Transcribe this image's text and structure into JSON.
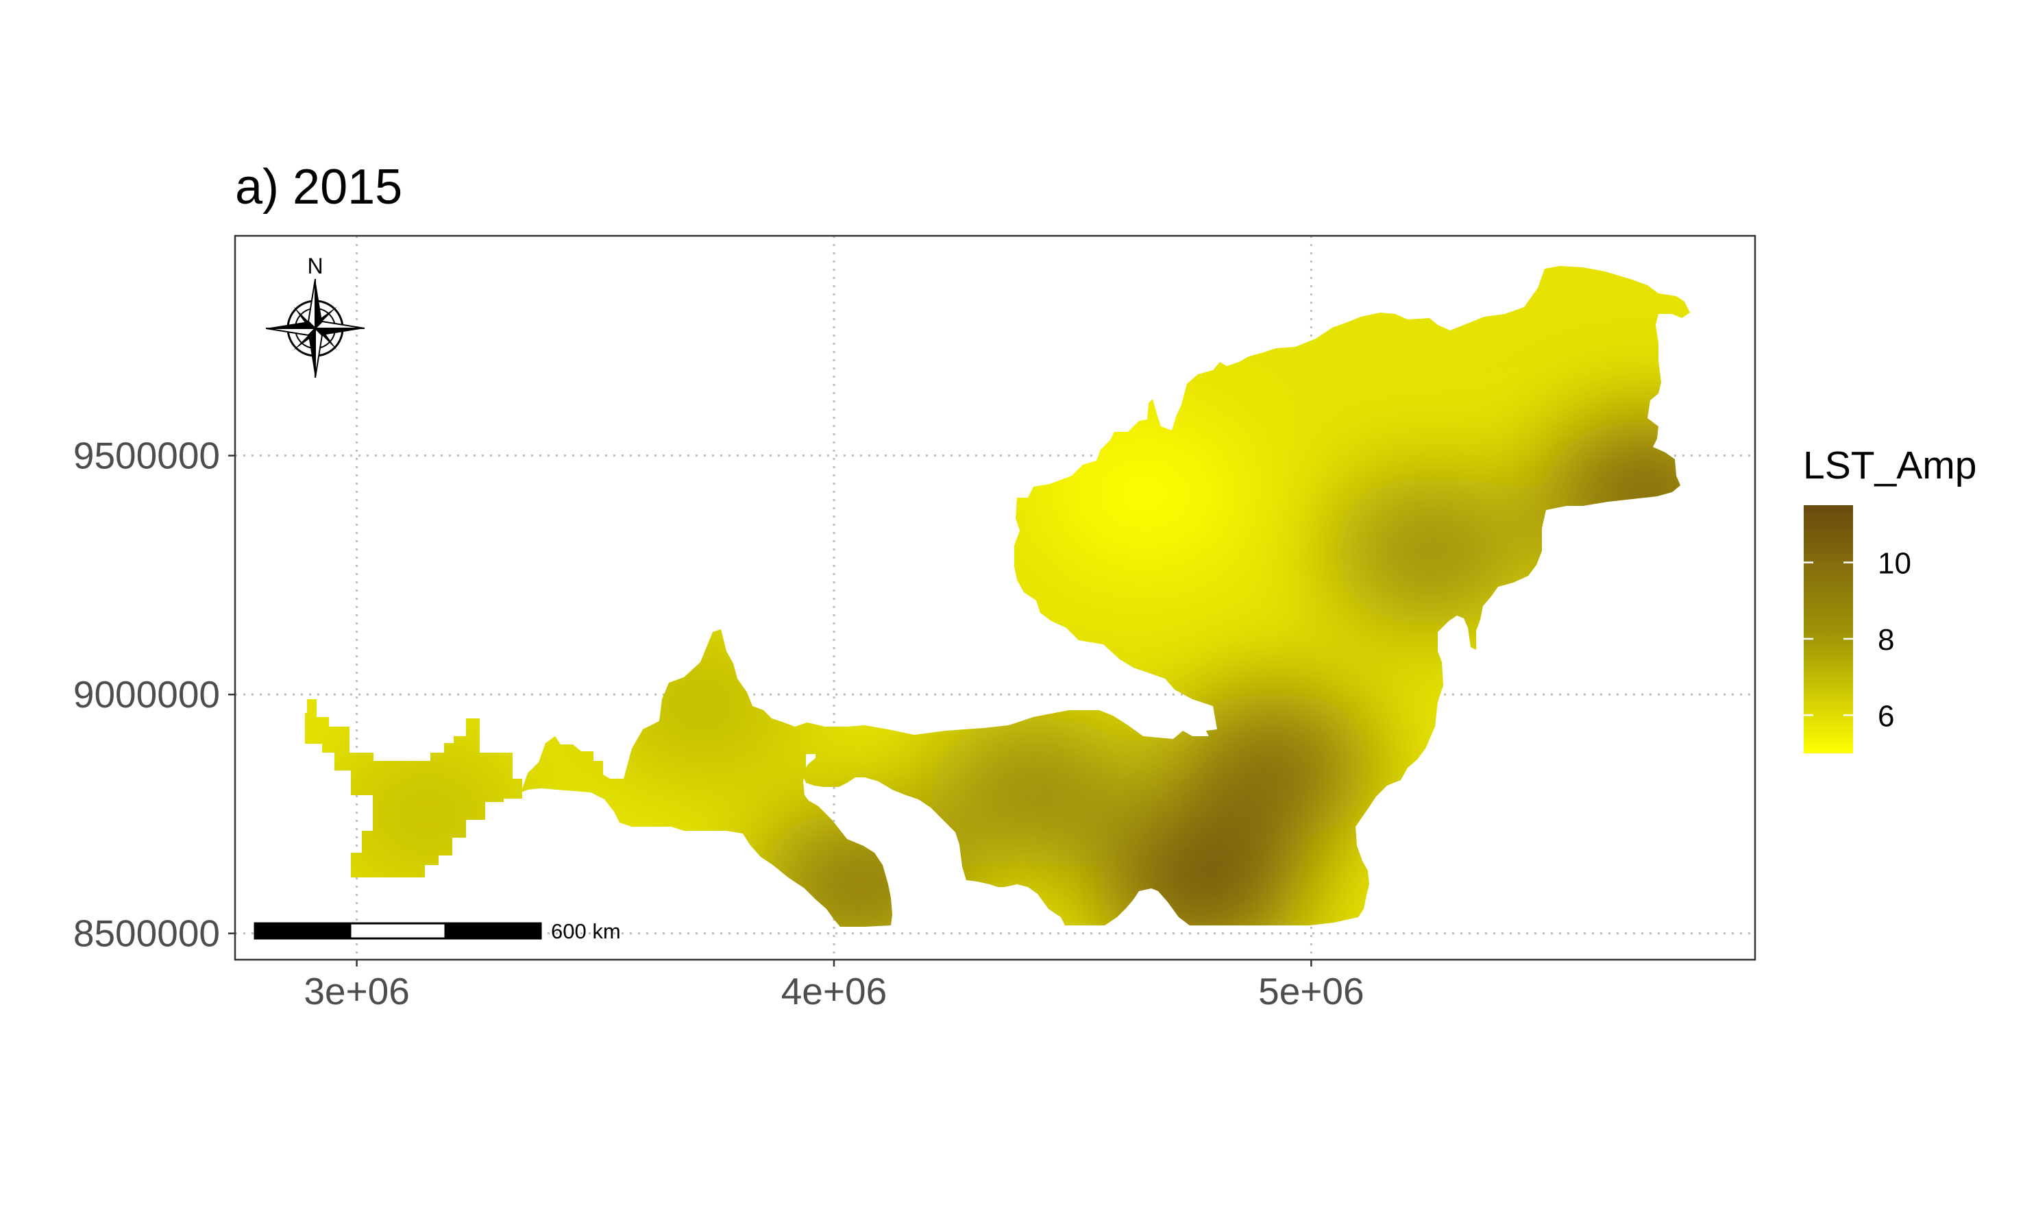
{
  "chart_data": {
    "type": "heatmap",
    "subtype": "raster map",
    "title": "a) 2015",
    "xlabel": "",
    "ylabel": "",
    "x_ticks": [
      {
        "value": 3000000,
        "label": "3e+06"
      },
      {
        "value": 4000000,
        "label": "4e+06"
      },
      {
        "value": 5000000,
        "label": "5e+06"
      }
    ],
    "y_ticks": [
      {
        "value": 8500000,
        "label": "8500000"
      },
      {
        "value": 9000000,
        "label": "9000000"
      },
      {
        "value": 9500000,
        "label": "9500000"
      }
    ],
    "xlim": [
      2745000,
      5930000
    ],
    "ylim": [
      8445000,
      9960000
    ],
    "grid": "dotted",
    "legend": {
      "title": "LST_Amp",
      "position": "right",
      "range": [
        5,
        11.5
      ],
      "ticks": [
        {
          "value": 6,
          "label": "6"
        },
        {
          "value": 8,
          "label": "8"
        },
        {
          "value": 10,
          "label": "10"
        }
      ],
      "color_low": "#FFFF00",
      "color_mid": "#A39A07",
      "color_high": "#6B4A0F"
    },
    "value_hotspots": [
      {
        "x": 4650000,
        "y": 9420000,
        "value": 5.0
      },
      {
        "x": 5700000,
        "y": 9420000,
        "value": 10.5
      },
      {
        "x": 4920000,
        "y": 8850000,
        "value": 10.0
      },
      {
        "x": 4770000,
        "y": 8600000,
        "value": 11.0
      },
      {
        "x": 4050000,
        "y": 8600000,
        "value": 9.5
      },
      {
        "x": 3720000,
        "y": 8980000,
        "value": 7.0
      },
      {
        "x": 3150000,
        "y": 8750000,
        "value": 6.8
      },
      {
        "x": 5250000,
        "y": 9300000,
        "value": 8.5
      },
      {
        "x": 4420000,
        "y": 8800000,
        "value": 8.7
      }
    ],
    "base_value": 5.8,
    "scale_bar": {
      "label": "600 km",
      "length": 600000,
      "segments": 3
    },
    "north_arrow": {
      "label": "N"
    }
  }
}
